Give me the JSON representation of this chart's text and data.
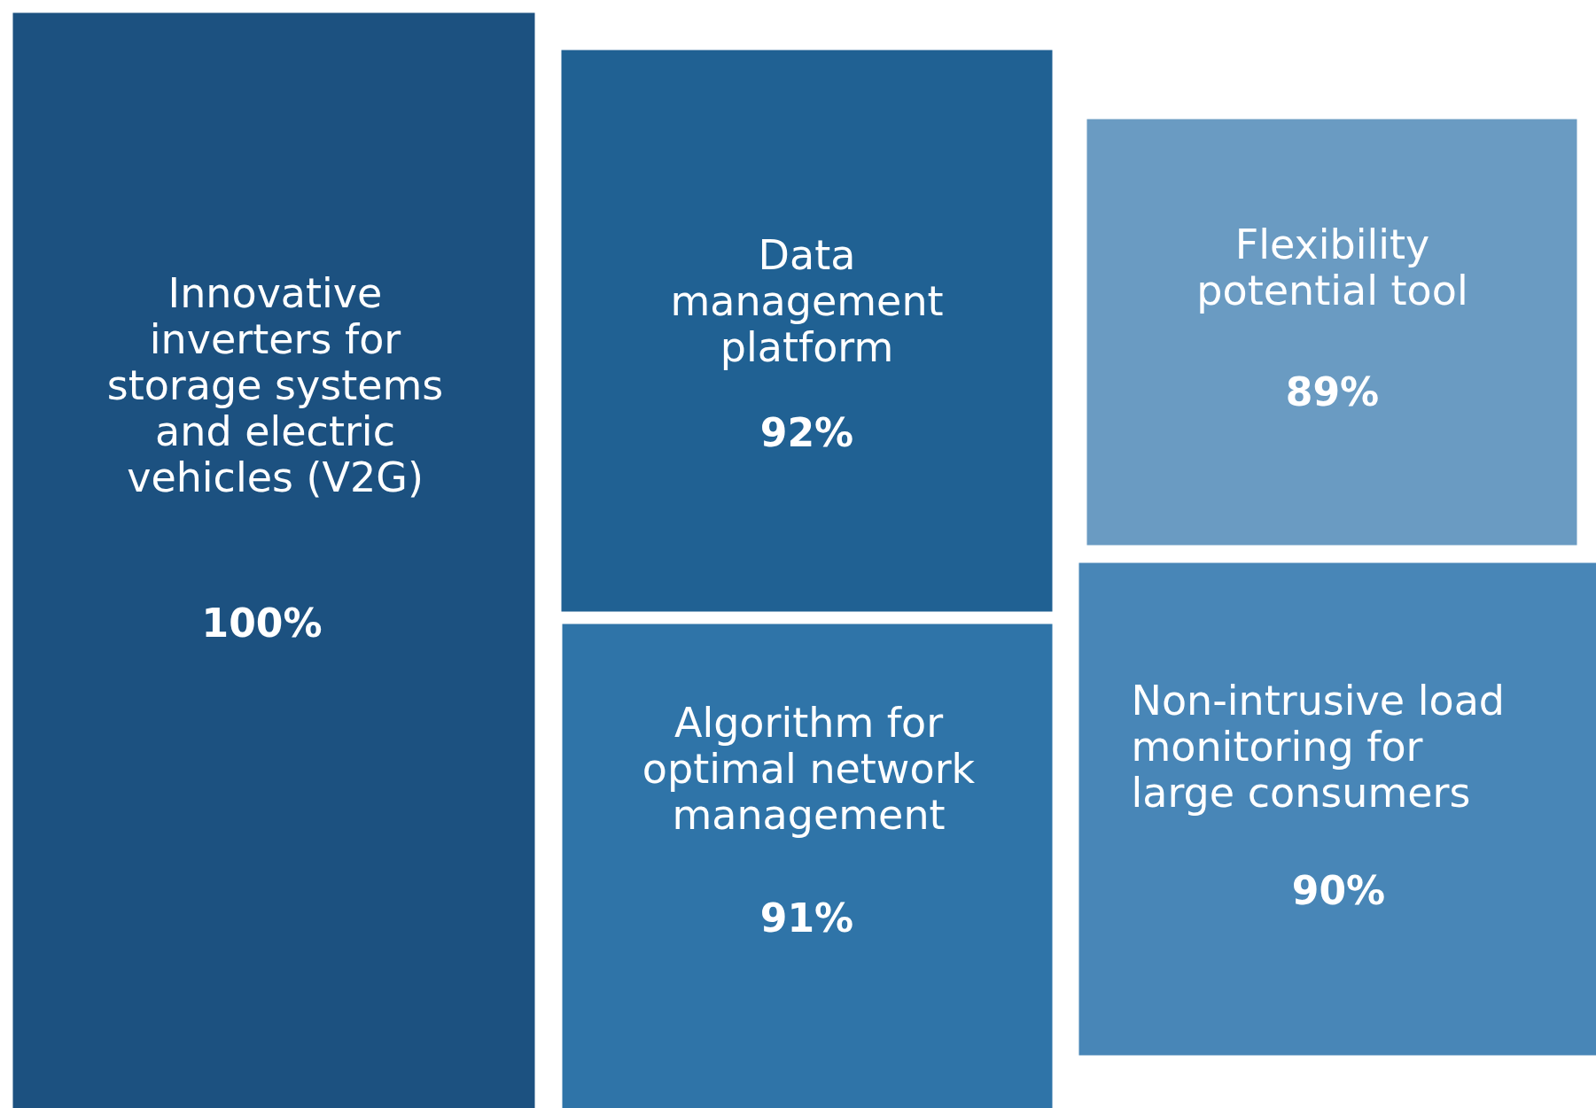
{
  "chart_data": {
    "type": "other",
    "categories": [
      "Innovative inverters for storage systems and electric vehicles (V2G)",
      "Data management platform",
      "Algorithm for optimal network management",
      "Flexibility potential tool",
      "Non-intrusive load monitoring for large consumers"
    ],
    "values": [
      100,
      92,
      91,
      89,
      90
    ],
    "value_labels": [
      "100%",
      "92%",
      "91%",
      "89%",
      "90%"
    ],
    "colors": [
      "#1c5180",
      "#206193",
      "#2f74a8",
      "#6a9bc2",
      "#4886b7"
    ]
  }
}
